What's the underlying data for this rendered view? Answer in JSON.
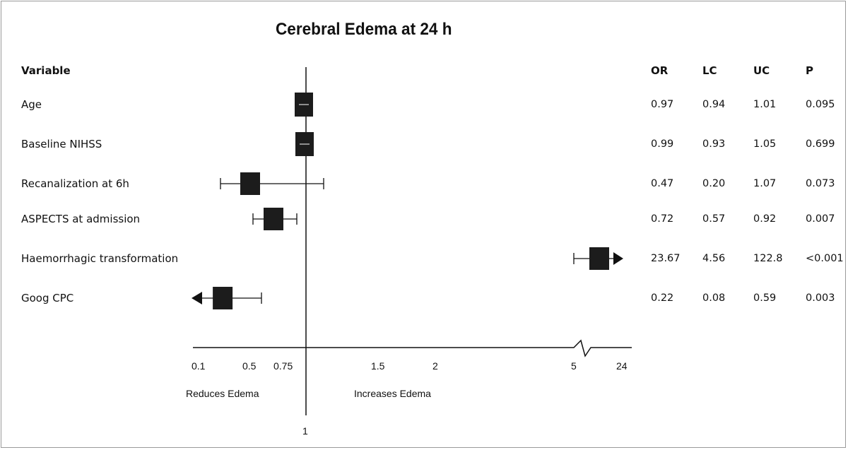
{
  "chart_data": {
    "type": "forest",
    "title": "Cerebral Edema at 24 h",
    "columns": {
      "variable": "Variable",
      "or": "OR",
      "lc": "LC",
      "uc": "UC",
      "p": "P"
    },
    "rows": [
      {
        "variable": "Age",
        "or": 0.97,
        "lc": 0.94,
        "uc": 1.01,
        "p": "0.095",
        "or_text": "0.97",
        "lc_text": "0.94",
        "uc_text": "1.01"
      },
      {
        "variable": "Baseline NIHSS",
        "or": 0.99,
        "lc": 0.93,
        "uc": 1.05,
        "p": "0.699",
        "or_text": "0.99",
        "lc_text": "0.93",
        "uc_text": "1.05"
      },
      {
        "variable": "Recanalization at 6h",
        "or": 0.47,
        "lc": 0.2,
        "uc": 1.07,
        "p": "0.073",
        "or_text": "0.47",
        "lc_text": "0.20",
        "uc_text": "1.07"
      },
      {
        "variable": "ASPECTS at admission",
        "or": 0.72,
        "lc": 0.57,
        "uc": 0.92,
        "p": "0.007",
        "or_text": "0.72",
        "lc_text": "0.57",
        "uc_text": "0.92"
      },
      {
        "variable": "Haemorrhagic transformation",
        "or": 23.67,
        "lc": 4.56,
        "uc": 122.8,
        "p": "<0.001",
        "or_text": "23.67",
        "lc_text": "4.56",
        "uc_text": "122.8"
      },
      {
        "variable": "Goog CPC",
        "or": 0.22,
        "lc": 0.08,
        "uc": 0.59,
        "p": "0.003",
        "or_text": "0.22",
        "lc_text": "0.08",
        "uc_text": "0.59"
      }
    ],
    "x_ticks": [
      "0.1",
      "0.5",
      "0.75",
      "1.5",
      "2",
      "5",
      "24"
    ],
    "x_axis_break": true,
    "reference_line": "1",
    "left_label": "Reduces Edema",
    "right_label": "Increases Edema"
  }
}
